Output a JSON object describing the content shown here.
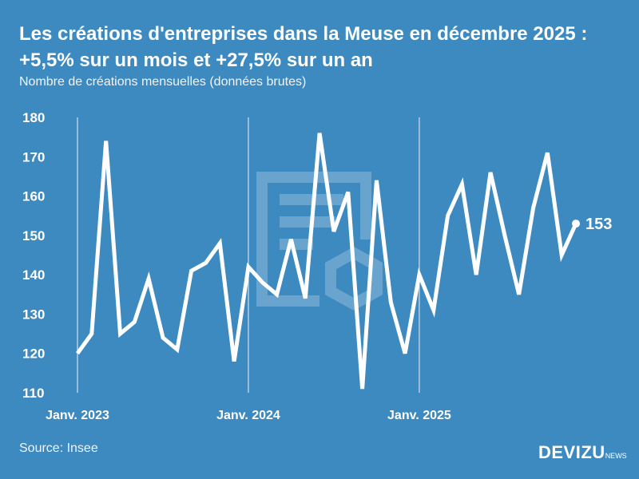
{
  "title": "Les créations d'entreprises dans la Meuse en décembre 2025 : +5,5% sur un mois et +27,5% sur un an",
  "subtitle": "Nombre de créations mensuelles (données brutes)",
  "source": "Source: Insee",
  "logo": {
    "main": "DEVIZU",
    "suffix": "NEWS"
  },
  "colors": {
    "background": "#3d8ac0",
    "line": "#ffffff"
  },
  "chart_data": {
    "type": "line",
    "title": "Les créations d'entreprises dans la Meuse en décembre 2025 : +5,5% sur un mois et +27,5% sur un an",
    "ylim": [
      110,
      180
    ],
    "yticks": [
      110,
      120,
      130,
      140,
      150,
      160,
      170,
      180
    ],
    "xtick_labels": [
      "Janv. 2023",
      "Janv. 2024",
      "Janv. 2025"
    ],
    "x_start": "2023-01",
    "x_end": "2025-12",
    "grid": "vertical lines at January",
    "values": [
      120,
      125,
      174,
      125,
      128,
      139,
      124,
      121,
      141,
      143,
      148,
      118,
      142,
      138,
      135,
      149,
      134,
      176,
      151,
      161,
      111,
      164,
      133,
      120,
      140,
      131,
      155,
      163,
      140,
      166,
      150,
      135,
      157,
      171,
      145,
      153
    ],
    "last_label": "153"
  }
}
